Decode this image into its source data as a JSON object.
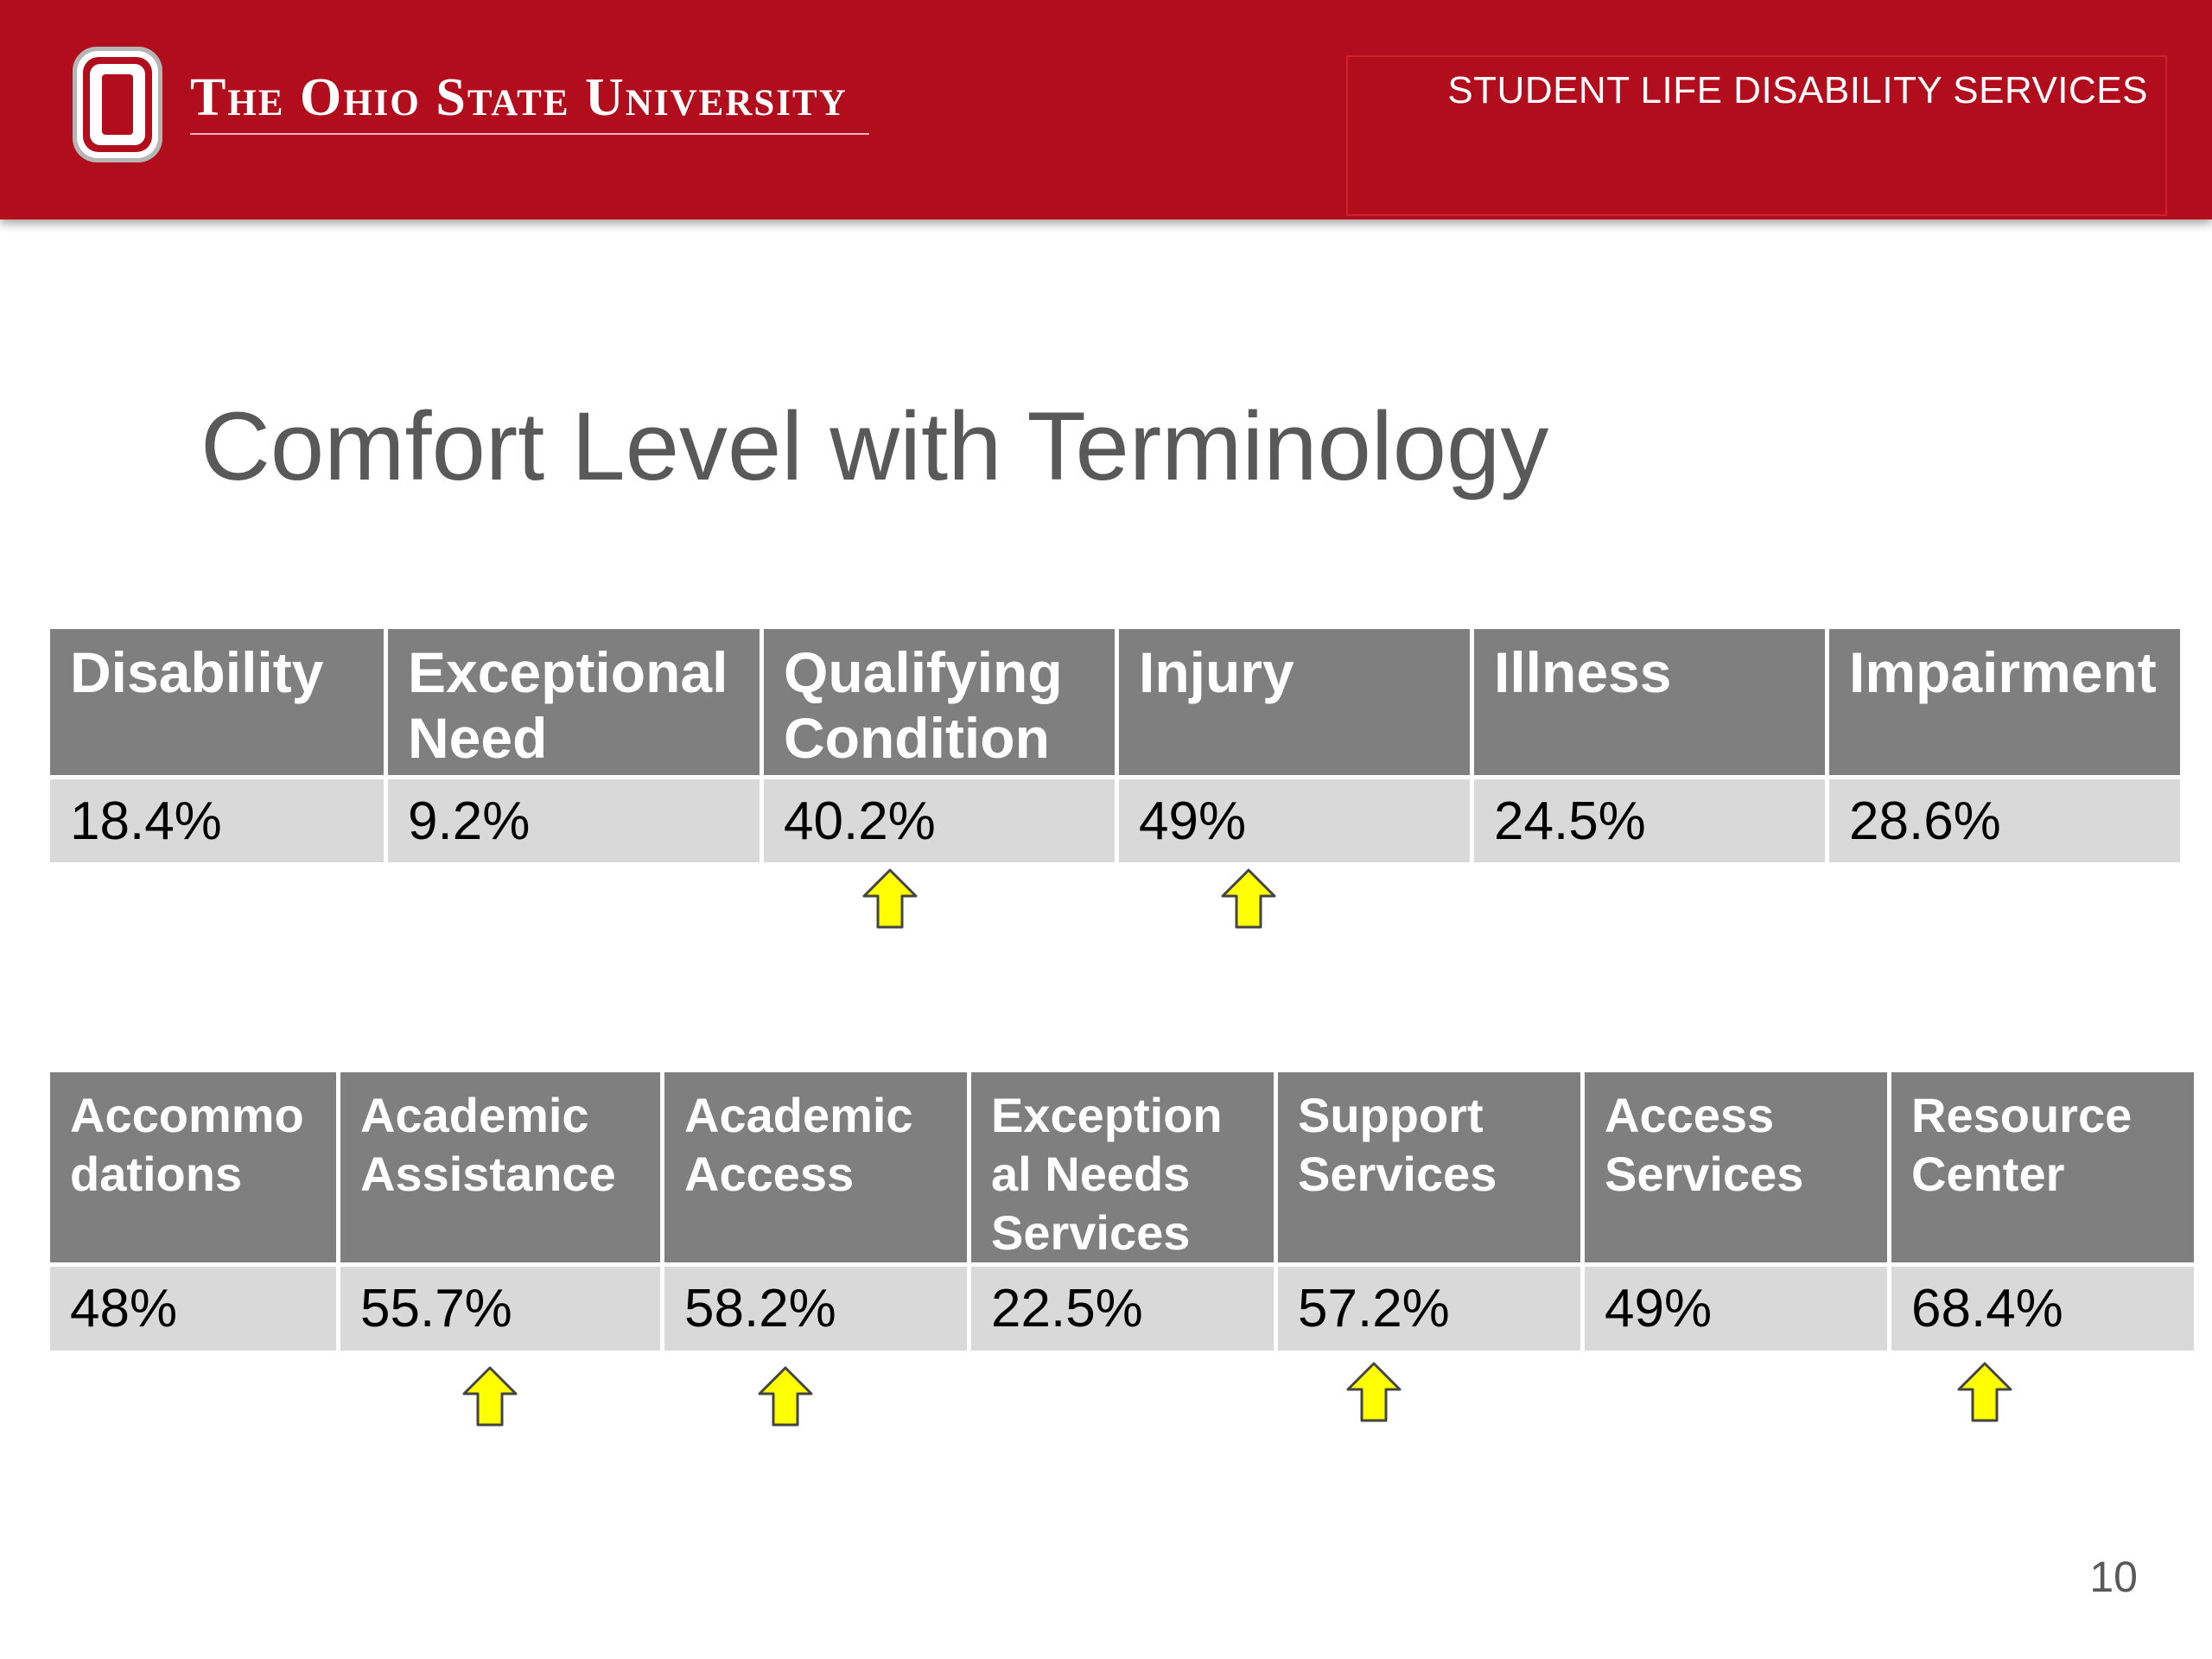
{
  "header": {
    "university_name": "The Ohio State University",
    "department": "STUDENT LIFE DISABILITY SERVICES",
    "logo_icon": "block-o-logo-icon",
    "brand_color": "#b20d1d"
  },
  "slide": {
    "title": "Comfort Level with Terminology",
    "page_number": "10"
  },
  "table1": {
    "headers": [
      "Disability",
      "Exceptional\nNeed",
      "Qualifying\nCondition",
      "Injury",
      "Illness",
      "Impairment"
    ],
    "values": [
      "18.4%",
      "9.2%",
      "40.2%",
      "49%",
      "24.5%",
      "28.6%"
    ],
    "up_arrow_columns": [
      "Qualifying Condition",
      "Injury"
    ]
  },
  "table2": {
    "headers": [
      "Accommo\ndations",
      "Academic\nAssistance",
      "Academic\nAccess",
      "Exception\nal Needs\nServices",
      "Support\nServices",
      "Access\nServices",
      "Resource\nCenter"
    ],
    "values": [
      "48%",
      "55.7%",
      "58.2%",
      "22.5%",
      "57.2%",
      "49%",
      "68.4%"
    ],
    "up_arrow_columns": [
      "Academic Assistance",
      "Academic Access",
      "Support Services",
      "Resource Center"
    ]
  },
  "colors": {
    "header_cell": "#7f7f7f",
    "value_cell": "#d9d9d9",
    "arrow_fill": "#ffff00",
    "title_text": "#595959"
  },
  "icons": {
    "arrow": "yellow-up-arrow-icon"
  }
}
